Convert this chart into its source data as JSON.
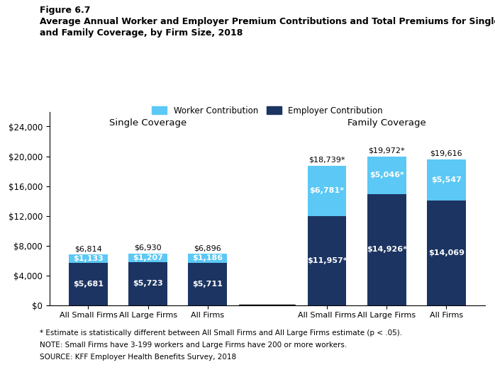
{
  "title_line1": "Figure 6.7",
  "title_line2": "Average Annual Worker and Employer Premium Contributions and Total Premiums for Single",
  "title_line3": "and Family Coverage, by Firm Size, 2018",
  "single_categories": [
    "All Small Firms",
    "All Large Firms",
    "All Firms"
  ],
  "family_categories": [
    "All Small Firms",
    "All Large Firms",
    "All Firms"
  ],
  "single_employer": [
    5681,
    5723,
    5711
  ],
  "single_worker": [
    1133,
    1207,
    1186
  ],
  "single_total": [
    "$6,814",
    "$6,930",
    "$6,896"
  ],
  "single_employer_labels": [
    "$5,681",
    "$5,723",
    "$5,711"
  ],
  "single_worker_labels": [
    "$1,133",
    "$1,207",
    "$1,186"
  ],
  "family_employer": [
    11957,
    14926,
    14069
  ],
  "family_worker": [
    6781,
    5046,
    5547
  ],
  "family_total": [
    "$18,739*",
    "$19,972*",
    "$19,616"
  ],
  "family_employer_labels": [
    "$11,957*",
    "$14,926*",
    "$14,069"
  ],
  "family_worker_labels": [
    "$6,781*",
    "$5,046*",
    "$5,547"
  ],
  "worker_color": "#5BC8F5",
  "employer_color": "#1C3461",
  "single_section_label": "Single Coverage",
  "family_section_label": "Family Coverage",
  "ylim": [
    0,
    26000
  ],
  "yticks": [
    0,
    4000,
    8000,
    12000,
    16000,
    20000,
    24000
  ],
  "ytick_labels": [
    "$0",
    "$4,000",
    "$8,000",
    "$12,000",
    "$16,000",
    "$20,000",
    "$24,000"
  ],
  "legend_worker": "Worker Contribution",
  "legend_employer": "Employer Contribution",
  "footnote1": "* Estimate is statistically different between All Small Firms and All Large Firms estimate (p < .05).",
  "footnote2": "NOTE: Small Firms have 3-199 workers and Large Firms have 200 or more workers.",
  "footnote3": "SOURCE: KFF Employer Health Benefits Survey, 2018",
  "bar_width": 0.65,
  "figsize": [
    6.98,
    5.25
  ],
  "dpi": 100
}
